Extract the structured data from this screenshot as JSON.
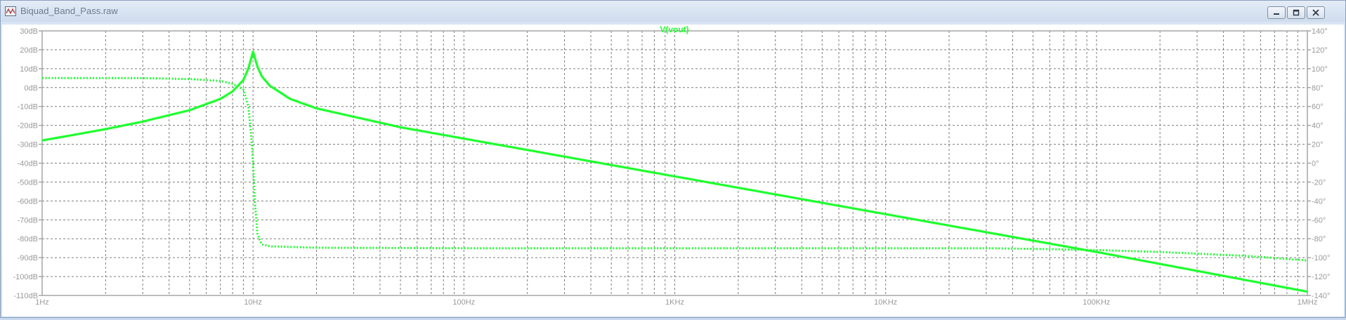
{
  "window": {
    "title": "Biquad_Band_Pass.raw",
    "icon": "waveform-viewer-icon",
    "controls": {
      "minimize": "minimize-icon",
      "restore": "restore-icon",
      "close": "close-icon"
    }
  },
  "colors": {
    "trace": "#1eff2e",
    "grid": "#7c7c7c",
    "frame": "#a6a6a6",
    "tick_text": "#9a9a9a",
    "title_bar": "#cfdcee"
  },
  "chart_data": {
    "type": "line",
    "title": "V(vout)",
    "x_scale": "log",
    "xlim": [
      1,
      1000000
    ],
    "x_ticks": [
      {
        "value": 1,
        "label": "1Hz"
      },
      {
        "value": 10,
        "label": "10Hz"
      },
      {
        "value": 100,
        "label": "100Hz"
      },
      {
        "value": 1000,
        "label": "1KHz"
      },
      {
        "value": 10000,
        "label": "10KHz"
      },
      {
        "value": 100000,
        "label": "100KHz"
      },
      {
        "value": 1000000,
        "label": "1MHz"
      }
    ],
    "ylim_left": [
      -110,
      30
    ],
    "y_ticks_left": [
      "30dB",
      "20dB",
      "10dB",
      "0dB",
      "-10dB",
      "-20dB",
      "-30dB",
      "-40dB",
      "-50dB",
      "-60dB",
      "-70dB",
      "-80dB",
      "-90dB",
      "-100dB",
      "-110dB"
    ],
    "ylim_right": [
      -140,
      140
    ],
    "y_ticks_right": [
      "140°",
      "120°",
      "100°",
      "80°",
      "60°",
      "40°",
      "20°",
      "0°",
      "-20°",
      "-40°",
      "-60°",
      "-80°",
      "-100°",
      "-120°",
      "-140°"
    ],
    "grid": true,
    "series": [
      {
        "name": "V(vout)",
        "quantity": "magnitude",
        "axis": "left",
        "style": "solid",
        "points": [
          [
            1,
            -28
          ],
          [
            2,
            -22
          ],
          [
            3,
            -18
          ],
          [
            5,
            -12
          ],
          [
            7,
            -6
          ],
          [
            8,
            -2
          ],
          [
            9,
            4
          ],
          [
            9.5,
            10
          ],
          [
            10,
            19
          ],
          [
            10.5,
            11
          ],
          [
            11,
            6
          ],
          [
            12,
            1
          ],
          [
            15,
            -6
          ],
          [
            20,
            -11
          ],
          [
            50,
            -21
          ],
          [
            100,
            -27
          ],
          [
            1000,
            -47
          ],
          [
            10000,
            -67
          ],
          [
            100000,
            -87
          ],
          [
            1000000,
            -108
          ]
        ]
      },
      {
        "name": "",
        "quantity": "phase",
        "axis": "right",
        "style": "dotted",
        "points": [
          [
            1,
            90
          ],
          [
            3,
            90
          ],
          [
            5,
            89
          ],
          [
            7,
            87
          ],
          [
            8,
            84
          ],
          [
            9,
            78
          ],
          [
            9.5,
            60
          ],
          [
            9.8,
            30
          ],
          [
            10,
            0
          ],
          [
            10.2,
            -40
          ],
          [
            10.5,
            -75
          ],
          [
            11,
            -86
          ],
          [
            12,
            -88
          ],
          [
            20,
            -89.5
          ],
          [
            100,
            -90
          ],
          [
            1000,
            -90
          ],
          [
            10000,
            -90
          ],
          [
            30000,
            -90
          ],
          [
            60000,
            -91
          ],
          [
            100000,
            -92
          ],
          [
            200000,
            -94
          ],
          [
            500000,
            -98
          ],
          [
            1000000,
            -103
          ]
        ]
      }
    ]
  }
}
